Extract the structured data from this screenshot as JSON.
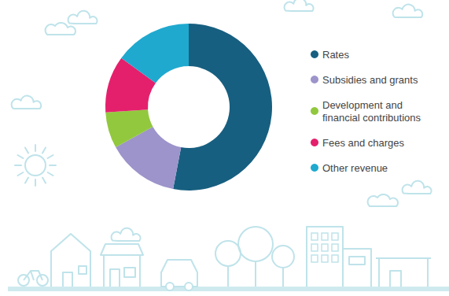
{
  "chart_data": {
    "type": "donut",
    "categories": [
      "Rates",
      "Subsidies and grants",
      "Development and financial contributions",
      "Fees and charges",
      "Other revenue"
    ],
    "values": [
      53,
      14,
      7,
      11,
      15
    ],
    "colors": [
      "#175f80",
      "#9c94ca",
      "#92c83e",
      "#e4206c",
      "#1fa9cf"
    ],
    "legend": "right"
  }
}
